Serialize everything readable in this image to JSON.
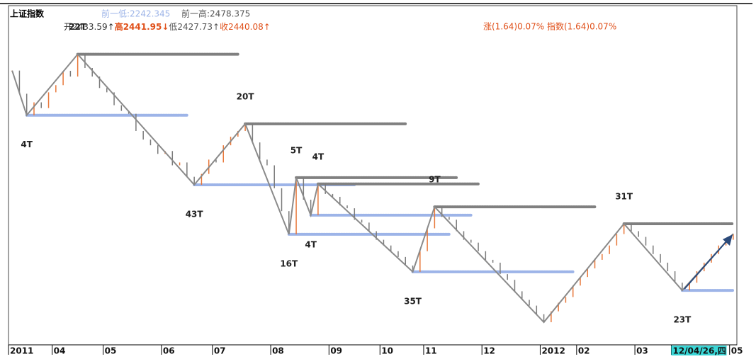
{
  "header": {
    "name": "上证指数",
    "prev_low": "前一低:2242.345",
    "prev_high": "前一高:2478.375",
    "open": "开2433.59↑",
    "high": "高2441.95↓",
    "low": "低2427.73↑",
    "close": "收2440.08↑",
    "change": "涨(1.64)0.07% 指数(1.64)0.07%"
  },
  "chart_data": {
    "type": "bar-path",
    "categories": [
      "2011",
      null,
      null,
      null,
      null,
      null,
      "04",
      null,
      null,
      null,
      null,
      null,
      null,
      "05",
      null,
      null,
      null,
      null,
      null,
      null,
      null,
      "06",
      null,
      null,
      null,
      null,
      null,
      null,
      "07",
      null,
      null,
      null,
      null,
      null,
      null,
      null,
      "08",
      null,
      null,
      null,
      null,
      null,
      null,
      null,
      "09",
      null,
      null,
      null,
      null,
      null,
      null,
      "10",
      null,
      null,
      null,
      null,
      null,
      "11",
      null,
      null,
      null,
      null,
      null,
      null,
      null,
      "12",
      null,
      null,
      null,
      null,
      null,
      null,
      null,
      "2012",
      null,
      null,
      null,
      null,
      "02",
      null,
      null,
      null,
      null,
      null,
      null,
      null,
      "03",
      null,
      null,
      null,
      null,
      "12/04/26,四",
      null,
      null,
      null,
      null,
      null,
      null,
      null,
      "05"
    ],
    "values": [
      3011,
      2930,
      2855,
      2900,
      2880,
      2935,
      2960,
      3010,
      2990,
      3068,
      3020,
      2990,
      2950,
      2935,
      2890,
      2870,
      2860,
      2800,
      2770,
      2750,
      2720,
      2730,
      2680,
      2690,
      2640,
      2612,
      2650,
      2700,
      2690,
      2750,
      2780,
      2800,
      2825,
      2760,
      2700,
      2680,
      2600,
      2520,
      2439,
      2637,
      2560,
      2506,
      2615,
      2580,
      2570,
      2540,
      2530,
      2490,
      2480,
      2450,
      2420,
      2400,
      2380,
      2360,
      2330,
      2308,
      2380,
      2460,
      2535,
      2500,
      2490,
      2450,
      2420,
      2410,
      2380,
      2350,
      2340,
      2300,
      2280,
      2240,
      2210,
      2190,
      2160,
      2132,
      2170,
      2200,
      2220,
      2260,
      2290,
      2320,
      2350,
      2370,
      2400,
      2440,
      2476,
      2450,
      2430,
      2400,
      2370,
      2340,
      2310,
      2270,
      2243,
      2270,
      2310,
      2340,
      2370,
      2400,
      2420,
      2441
    ],
    "up_color": "#e8783a",
    "down_color": "#7a7a7a",
    "ylim": [
      2053,
      3114
    ],
    "pivots": [
      {
        "at": 0,
        "value": 3011
      },
      {
        "at": 2,
        "value": 2855,
        "label": "4T"
      },
      {
        "at": 9,
        "value": 3068,
        "label": "22T"
      },
      {
        "at": 25,
        "value": 2612,
        "label": "43T"
      },
      {
        "at": 32,
        "value": 2825,
        "label": "20T"
      },
      {
        "at": 38,
        "value": 2439,
        "label": "16T"
      },
      {
        "at": 39,
        "value": 2637,
        "label": "5T"
      },
      {
        "at": 41,
        "value": 2506,
        "label": "4T"
      },
      {
        "at": 42,
        "value": 2615,
        "label": "4T"
      },
      {
        "at": 55,
        "value": 2308,
        "label": "35T"
      },
      {
        "at": 58,
        "value": 2535,
        "label": "9T"
      },
      {
        "at": 73,
        "value": 2132
      },
      {
        "at": 84,
        "value": 2476,
        "label": "31T"
      },
      {
        "at": 92,
        "value": 2243,
        "label": "23T"
      },
      {
        "at": 99,
        "value": 2441
      }
    ],
    "zigzag_color": "#8a8a8a",
    "resistance_color": "#808080",
    "support_color": "#9db4e8"
  }
}
